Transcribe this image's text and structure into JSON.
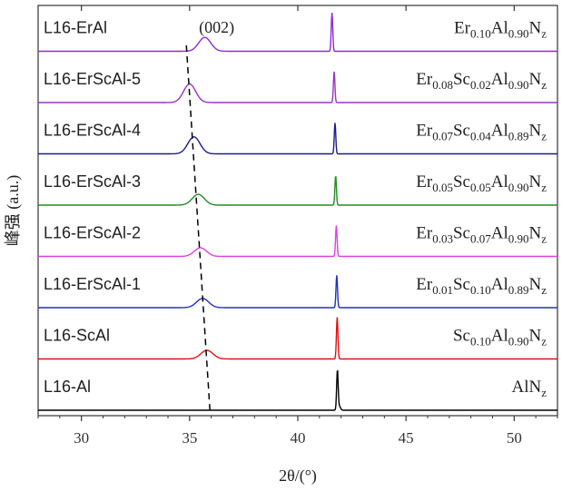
{
  "chart_data": {
    "type": "line",
    "title": "",
    "xlabel": "2θ/(°)",
    "ylabel": "峰强 (a.u.)",
    "xlim": [
      28,
      52
    ],
    "xticks": [
      "30",
      "35",
      "40",
      "45",
      "50"
    ],
    "grid": false,
    "legend": "none",
    "annotation": "(002)",
    "series": [
      {
        "name": "L16-ErAl",
        "formula": [
          [
            "Er",
            "0.10"
          ],
          [
            "Al",
            "0.90"
          ],
          [
            "N",
            "z"
          ]
        ],
        "color": "#8a2be2",
        "peak002": 35.7,
        "peakHeight002": 0.45,
        "peak2": 41.58,
        "peakHeight2": 1.25,
        "sharp": false
      },
      {
        "name": "L16-ErScAl-5",
        "formula": [
          [
            "Er",
            "0.08"
          ],
          [
            "Sc",
            "0.02"
          ],
          [
            "Al",
            "0.90"
          ],
          [
            "N",
            "z"
          ]
        ],
        "color": "#9932cc",
        "peak002": 35.0,
        "peakHeight002": 0.6,
        "peak2": 41.68,
        "peakHeight2": 1.0,
        "sharp": false
      },
      {
        "name": "L16-ErScAl-4",
        "formula": [
          [
            "Er",
            "0.07"
          ],
          [
            "Sc",
            "0.04"
          ],
          [
            "Al",
            "0.89"
          ],
          [
            "N",
            "z"
          ]
        ],
        "color": "#1c1c8c",
        "peak002": 35.2,
        "peakHeight002": 0.55,
        "peak2": 41.72,
        "peakHeight2": 1.0,
        "sharp": false
      },
      {
        "name": "L16-ErScAl-3",
        "formula": [
          [
            "Er",
            "0.05"
          ],
          [
            "Sc",
            "0.05"
          ],
          [
            "Al",
            "0.90"
          ],
          [
            "N",
            "z"
          ]
        ],
        "color": "#228b22",
        "peak002": 35.4,
        "peakHeight002": 0.35,
        "peak2": 41.75,
        "peakHeight2": 0.95,
        "sharp": false
      },
      {
        "name": "L16-ErScAl-2",
        "formula": [
          [
            "Er",
            "0.03"
          ],
          [
            "Sc",
            "0.07"
          ],
          [
            "Al",
            "0.90"
          ],
          [
            "N",
            "z"
          ]
        ],
        "color": "#e040e0",
        "peak002": 35.5,
        "peakHeight002": 0.28,
        "peak2": 41.78,
        "peakHeight2": 1.0,
        "sharp": false
      },
      {
        "name": "L16-ErScAl-1",
        "formula": [
          [
            "Er",
            "0.01"
          ],
          [
            "Sc",
            "0.10"
          ],
          [
            "Al",
            "0.89"
          ],
          [
            "N",
            "z"
          ]
        ],
        "color": "#2030c0",
        "peak002": 35.6,
        "peakHeight002": 0.3,
        "peak2": 41.8,
        "peakHeight2": 1.05,
        "sharp": false
      },
      {
        "name": "L16-ScAl",
        "formula": [
          [
            "Sc",
            "0.10"
          ],
          [
            "Al",
            "0.90"
          ],
          [
            "N",
            "z"
          ]
        ],
        "color": "#e01010",
        "peak002": 35.8,
        "peakHeight002": 0.28,
        "peak2": 41.82,
        "peakHeight2": 1.35,
        "sharp": false
      },
      {
        "name": "L16-Al",
        "formula": [
          [
            "AlN",
            ""
          ],
          [
            "",
            "z"
          ]
        ],
        "color": "#000000",
        "peak002": 35.9,
        "peakHeight002": 0.0,
        "peak2": 41.83,
        "peakHeight2": 1.3,
        "sharp": true
      }
    ]
  }
}
